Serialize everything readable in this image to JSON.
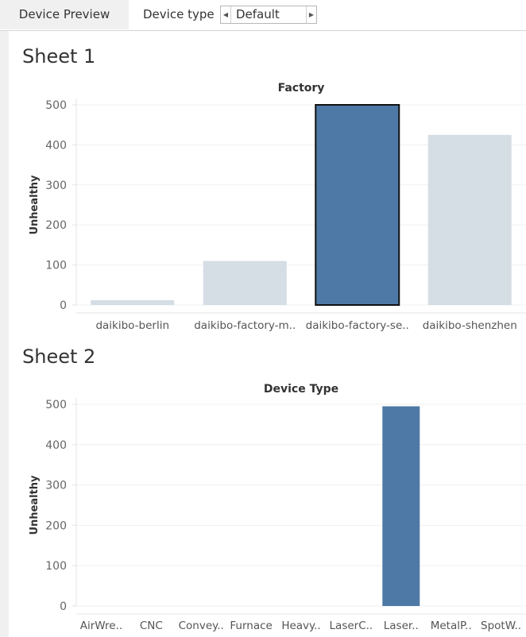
{
  "toolbar": {
    "tab_label": "Device Preview",
    "device_type_label": "Device type",
    "device_type_value": "Default",
    "prev_arrow": "◀",
    "next_arrow": "▶"
  },
  "colors": {
    "selected": "#4e79a7",
    "unselected": "#d5dde5",
    "gridline": "#f0f0f0"
  },
  "sheets": [
    {
      "title": "Sheet 1"
    },
    {
      "title": "Sheet 2"
    }
  ],
  "chart_data": [
    {
      "type": "bar",
      "title": "Factory",
      "ylabel": "Unhealthy",
      "ylim": [
        0,
        500
      ],
      "yticks": [
        0,
        100,
        200,
        300,
        400,
        500
      ],
      "categories": [
        "daikibo-berlin",
        "daikibo-factory-m..",
        "daikibo-factory-se..",
        "daikibo-shenzhen"
      ],
      "values": [
        12,
        110,
        500,
        425
      ],
      "selected_index": 2
    },
    {
      "type": "bar",
      "title": "Device Type",
      "ylabel": "Unhealthy",
      "ylim": [
        0,
        500
      ],
      "yticks": [
        0,
        100,
        200,
        300,
        400,
        500
      ],
      "categories": [
        "AirWre..",
        "CNC",
        "Convey..",
        "Furnace",
        "Heavy..",
        "LaserC..",
        "Laser..",
        "MetalP..",
        "SpotW.."
      ],
      "values": [
        0,
        0,
        0,
        0,
        0,
        0,
        495,
        0,
        0
      ],
      "selected_index": -1,
      "all_color": "#4e79a7"
    }
  ]
}
